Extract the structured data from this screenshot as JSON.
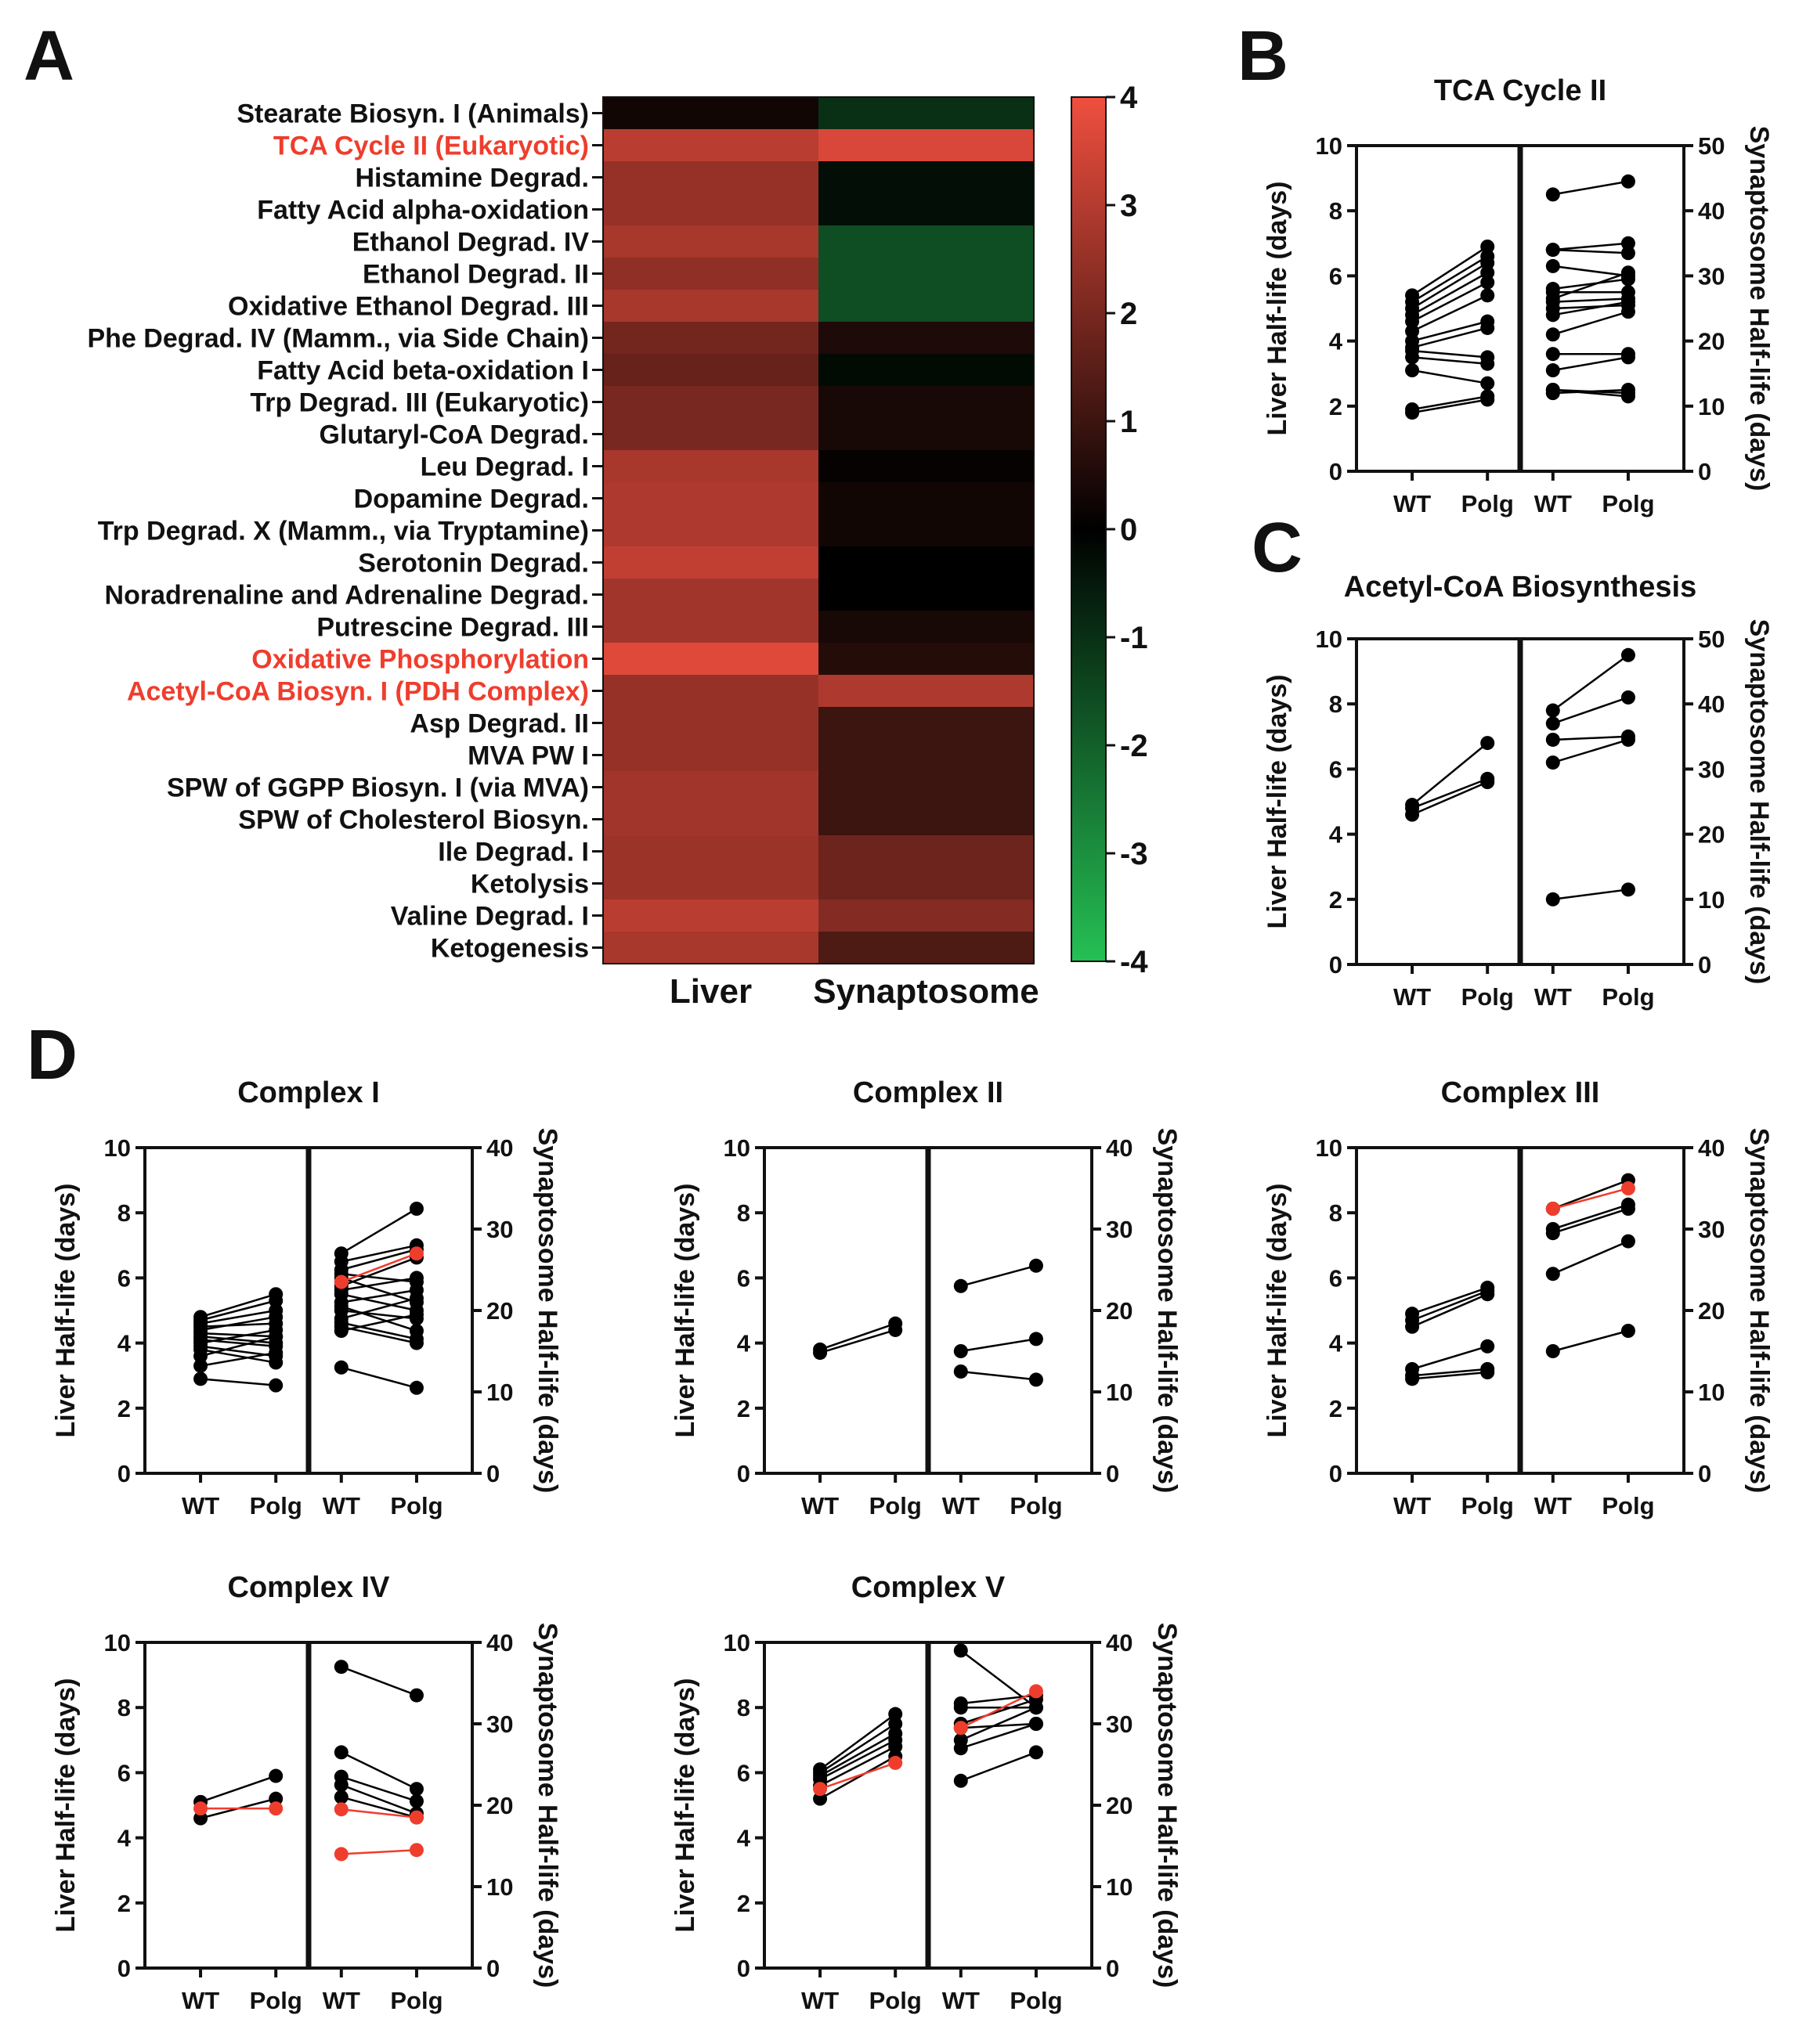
{
  "panel_letters": {
    "a": "A",
    "b": "B",
    "c": "C",
    "d": "D"
  },
  "heatmap": {
    "columns": [
      "Liver",
      "Synaptosome"
    ],
    "colorbar_ticks": [
      "4",
      "3",
      "2",
      "1",
      "0",
      "-1",
      "-2",
      "-3",
      "-4"
    ],
    "colors": {
      "high": "#f04f3f",
      "mid": "#000000",
      "low": "#25c054",
      "highlight_label": "#ef3d2d"
    }
  },
  "chart_data": [
    {
      "type": "heatmap",
      "panel": "A",
      "columns": [
        "Liver",
        "Synaptosome"
      ],
      "vmin": -4,
      "vmax": 4,
      "rows": [
        {
          "label": "Stearate Biosyn. I (Animals)",
          "liver": 0.3,
          "synaptosome": -1.0,
          "highlight": false
        },
        {
          "label": "TCA Cycle II (Eukaryotic)",
          "liver": 3.1,
          "synaptosome": 3.6,
          "highlight": true
        },
        {
          "label": "Histamine Degrad.",
          "liver": 2.5,
          "synaptosome": -0.3,
          "highlight": false
        },
        {
          "label": "Fatty Acid alpha-oxidation",
          "liver": 2.5,
          "synaptosome": -0.3,
          "highlight": false
        },
        {
          "label": "Ethanol Degrad. IV",
          "liver": 2.8,
          "synaptosome": -1.6,
          "highlight": false
        },
        {
          "label": "Ethanol Degrad. II",
          "liver": 2.4,
          "synaptosome": -1.6,
          "highlight": false
        },
        {
          "label": "Oxidative Ethanol Degrad. III",
          "liver": 2.8,
          "synaptosome": -1.6,
          "highlight": false
        },
        {
          "label": "Phe Degrad. IV (Mamm., via Side Chain)",
          "liver": 1.9,
          "synaptosome": 0.5,
          "highlight": false
        },
        {
          "label": "Fatty Acid beta-oxidation I",
          "liver": 1.7,
          "synaptosome": -0.2,
          "highlight": false
        },
        {
          "label": "Trp Degrad. III (Eukaryotic)",
          "liver": 2.0,
          "synaptosome": 0.4,
          "highlight": false
        },
        {
          "label": "Glutaryl-CoA Degrad.",
          "liver": 2.0,
          "synaptosome": 0.4,
          "highlight": false
        },
        {
          "label": "Leu Degrad. I",
          "liver": 2.8,
          "synaptosome": 0.1,
          "highlight": false
        },
        {
          "label": "Dopamine Degrad.",
          "liver": 2.9,
          "synaptosome": 0.3,
          "highlight": false
        },
        {
          "label": "Trp Degrad. X (Mamm., via Tryptamine)",
          "liver": 2.9,
          "synaptosome": 0.3,
          "highlight": false
        },
        {
          "label": "Serotonin Degrad.",
          "liver": 3.2,
          "synaptosome": 0.0,
          "highlight": false
        },
        {
          "label": "Noradrenaline and Adrenaline Degrad.",
          "liver": 2.7,
          "synaptosome": 0.0,
          "highlight": false
        },
        {
          "label": "Putrescine Degrad. III",
          "liver": 2.7,
          "synaptosome": 0.4,
          "highlight": false
        },
        {
          "label": "Oxidative Phosphorylation",
          "liver": 3.7,
          "synaptosome": 0.6,
          "highlight": true
        },
        {
          "label": "Acetyl-CoA Biosyn. I (PDH Complex)",
          "liver": 2.5,
          "synaptosome": 2.9,
          "highlight": true
        },
        {
          "label": "Asp Degrad. II",
          "liver": 2.5,
          "synaptosome": 1.0,
          "highlight": false
        },
        {
          "label": "MVA PW I",
          "liver": 2.5,
          "synaptosome": 1.0,
          "highlight": false
        },
        {
          "label": "SPW of GGPP Biosyn. I (via MVA)",
          "liver": 2.7,
          "synaptosome": 1.0,
          "highlight": false
        },
        {
          "label": "SPW of Cholesterol Biosyn.",
          "liver": 2.7,
          "synaptosome": 1.0,
          "highlight": false
        },
        {
          "label": "Ile Degrad. I",
          "liver": 2.6,
          "synaptosome": 1.8,
          "highlight": false
        },
        {
          "label": "Ketolysis",
          "liver": 2.6,
          "synaptosome": 1.8,
          "highlight": false
        },
        {
          "label": "Valine Degrad. I",
          "liver": 3.1,
          "synaptosome": 2.2,
          "highlight": false
        },
        {
          "label": "Ketogenesis",
          "liver": 2.8,
          "synaptosome": 1.3,
          "highlight": false
        }
      ]
    },
    {
      "type": "line",
      "panel": "B",
      "title": "TCA Cycle II",
      "ylabel_left": "Liver Half-life (days)",
      "ylabel_right": "Synaptosome Half-life (days)",
      "ylim_left": [
        0,
        10
      ],
      "ylim_right": [
        0,
        50
      ],
      "yticks_left": [
        "0",
        "2",
        "4",
        "6",
        "8",
        "10"
      ],
      "yticks_right": [
        "0",
        "10",
        "20",
        "30",
        "40",
        "50"
      ],
      "categories": [
        "WT",
        "Polg",
        "WT",
        "Polg"
      ],
      "liver_pairs": [
        [
          5.4,
          6.9
        ],
        [
          5.2,
          6.6
        ],
        [
          5.0,
          6.4
        ],
        [
          4.8,
          6.1
        ],
        [
          4.6,
          5.8
        ],
        [
          4.3,
          5.4
        ],
        [
          4.0,
          4.6
        ],
        [
          3.8,
          4.4
        ],
        [
          3.7,
          3.5
        ],
        [
          3.5,
          3.3
        ],
        [
          3.1,
          2.7
        ],
        [
          1.9,
          2.3
        ],
        [
          1.8,
          2.2
        ]
      ],
      "synaptosome_pairs": [
        [
          42.5,
          44.5
        ],
        [
          34.0,
          35.0
        ],
        [
          34.0,
          33.5
        ],
        [
          31.5,
          30.0
        ],
        [
          28.0,
          29.5
        ],
        [
          27.5,
          27.5
        ],
        [
          26.5,
          30.5
        ],
        [
          26.0,
          26.5
        ],
        [
          25.0,
          25.5
        ],
        [
          24.0,
          26.0
        ],
        [
          21.0,
          24.5
        ],
        [
          18.0,
          18.0
        ],
        [
          15.5,
          17.5
        ],
        [
          12.5,
          12.0
        ],
        [
          12.0,
          12.5
        ],
        [
          12.5,
          11.5
        ]
      ],
      "red_liver_pairs": [],
      "red_synaptosome_pairs": []
    },
    {
      "type": "line",
      "panel": "C",
      "title": "Acetyl-CoA Biosynthesis",
      "ylabel_left": "Liver Half-life (days)",
      "ylabel_right": "Synaptosome Half-life (days)",
      "ylim_left": [
        0,
        10
      ],
      "ylim_right": [
        0,
        50
      ],
      "yticks_left": [
        "0",
        "2",
        "4",
        "6",
        "8",
        "10"
      ],
      "yticks_right": [
        "0",
        "10",
        "20",
        "30",
        "40",
        "50"
      ],
      "categories": [
        "WT",
        "Polg",
        "WT",
        "Polg"
      ],
      "liver_pairs": [
        [
          4.9,
          6.8
        ],
        [
          4.8,
          5.7
        ],
        [
          4.6,
          5.6
        ]
      ],
      "synaptosome_pairs": [
        [
          39.0,
          47.5
        ],
        [
          37.0,
          41.0
        ],
        [
          34.5,
          35.0
        ],
        [
          31.0,
          34.5
        ],
        [
          10.0,
          11.5
        ]
      ],
      "red_liver_pairs": [],
      "red_synaptosome_pairs": []
    },
    {
      "type": "line",
      "panel": "D",
      "title": "Complex I",
      "ylabel_left": "Liver Half-life (days)",
      "ylabel_right": "Synaptosome Half-life (days)",
      "ylim_left": [
        0,
        10
      ],
      "ylim_right": [
        0,
        40
      ],
      "yticks_left": [
        "0",
        "2",
        "4",
        "6",
        "8",
        "10"
      ],
      "yticks_right": [
        "0",
        "10",
        "20",
        "30",
        "40"
      ],
      "categories": [
        "WT",
        "Polg",
        "WT",
        "Polg"
      ],
      "liver_pairs": [
        [
          4.8,
          5.5
        ],
        [
          4.7,
          5.3
        ],
        [
          4.6,
          5.0
        ],
        [
          4.5,
          4.6
        ],
        [
          4.4,
          4.8
        ],
        [
          4.3,
          4.2
        ],
        [
          4.2,
          4.0
        ],
        [
          4.1,
          3.9
        ],
        [
          4.0,
          4.4
        ],
        [
          3.9,
          3.6
        ],
        [
          3.8,
          3.4
        ],
        [
          3.6,
          4.2
        ],
        [
          3.3,
          3.7
        ],
        [
          2.9,
          2.7
        ]
      ],
      "synaptosome_pairs": [
        [
          27.0,
          32.5
        ],
        [
          26.0,
          28.0
        ],
        [
          25.0,
          27.5
        ],
        [
          24.5,
          23.5
        ],
        [
          24.0,
          21.0
        ],
        [
          23.0,
          26.5
        ],
        [
          22.5,
          24.0
        ],
        [
          22.0,
          20.0
        ],
        [
          21.0,
          22.5
        ],
        [
          20.5,
          17.5
        ],
        [
          20.0,
          19.0
        ],
        [
          19.0,
          21.5
        ],
        [
          18.5,
          16.5
        ],
        [
          18.0,
          16.0
        ],
        [
          17.5,
          19.5
        ],
        [
          13.0,
          10.5
        ]
      ],
      "red_liver_pairs": [],
      "red_synaptosome_pairs": [
        [
          23.5,
          27.0
        ]
      ]
    },
    {
      "type": "line",
      "panel": "D",
      "title": "Complex II",
      "ylabel_left": "Liver Half-life (days)",
      "ylabel_right": "Synaptosome Half-life (days)",
      "ylim_left": [
        0,
        10
      ],
      "ylim_right": [
        0,
        40
      ],
      "yticks_left": [
        "0",
        "2",
        "4",
        "6",
        "8",
        "10"
      ],
      "yticks_right": [
        "0",
        "10",
        "20",
        "30",
        "40"
      ],
      "categories": [
        "WT",
        "Polg",
        "WT",
        "Polg"
      ],
      "liver_pairs": [
        [
          3.8,
          4.6
        ],
        [
          3.7,
          4.4
        ]
      ],
      "synaptosome_pairs": [
        [
          23.0,
          25.5
        ],
        [
          15.0,
          16.5
        ],
        [
          12.5,
          11.5
        ]
      ],
      "red_liver_pairs": [],
      "red_synaptosome_pairs": []
    },
    {
      "type": "line",
      "panel": "D",
      "title": "Complex III",
      "ylabel_left": "Liver Half-life (days)",
      "ylabel_right": "Synaptosome Half-life (days)",
      "ylim_left": [
        0,
        10
      ],
      "ylim_right": [
        0,
        40
      ],
      "yticks_left": [
        "0",
        "2",
        "4",
        "6",
        "8",
        "10"
      ],
      "yticks_right": [
        "0",
        "10",
        "20",
        "30",
        "40"
      ],
      "categories": [
        "WT",
        "Polg",
        "WT",
        "Polg"
      ],
      "liver_pairs": [
        [
          4.9,
          5.7
        ],
        [
          4.7,
          5.6
        ],
        [
          4.5,
          5.5
        ],
        [
          3.2,
          3.9
        ],
        [
          3.0,
          3.2
        ],
        [
          2.9,
          3.1
        ]
      ],
      "synaptosome_pairs": [
        [
          32.5,
          36.0
        ],
        [
          30.0,
          33.0
        ],
        [
          29.5,
          32.5
        ],
        [
          24.5,
          28.5
        ],
        [
          15.0,
          17.5
        ]
      ],
      "red_liver_pairs": [],
      "red_synaptosome_pairs": [
        [
          32.5,
          35.0
        ]
      ]
    },
    {
      "type": "line",
      "panel": "D",
      "title": "Complex IV",
      "ylabel_left": "Liver Half-life (days)",
      "ylabel_right": "Synaptosome Half-life (days)",
      "ylim_left": [
        0,
        10
      ],
      "ylim_right": [
        0,
        40
      ],
      "yticks_left": [
        "0",
        "2",
        "4",
        "6",
        "8",
        "10"
      ],
      "yticks_right": [
        "0",
        "10",
        "20",
        "30",
        "40"
      ],
      "categories": [
        "WT",
        "Polg",
        "WT",
        "Polg"
      ],
      "liver_pairs": [
        [
          5.1,
          5.9
        ],
        [
          4.6,
          5.2
        ]
      ],
      "synaptosome_pairs": [
        [
          37.0,
          33.5
        ],
        [
          26.5,
          22.0
        ],
        [
          23.5,
          20.5
        ],
        [
          22.5,
          19.0
        ],
        [
          21.0,
          18.5
        ]
      ],
      "red_liver_pairs": [
        [
          4.9,
          4.9
        ]
      ],
      "red_synaptosome_pairs": [
        [
          19.5,
          18.5
        ],
        [
          14.0,
          14.5
        ]
      ]
    },
    {
      "type": "line",
      "panel": "D",
      "title": "Complex V",
      "ylabel_left": "Liver Half-life (days)",
      "ylabel_right": "Synaptosome Half-life (days)",
      "ylim_left": [
        0,
        10
      ],
      "ylim_right": [
        0,
        40
      ],
      "yticks_left": [
        "0",
        "2",
        "4",
        "6",
        "8",
        "10"
      ],
      "yticks_right": [
        "0",
        "10",
        "20",
        "30",
        "40"
      ],
      "categories": [
        "WT",
        "Polg",
        "WT",
        "Polg"
      ],
      "liver_pairs": [
        [
          6.1,
          7.8
        ],
        [
          6.0,
          7.5
        ],
        [
          5.9,
          7.2
        ],
        [
          5.8,
          7.0
        ],
        [
          5.6,
          6.8
        ],
        [
          5.2,
          6.5
        ]
      ],
      "synaptosome_pairs": [
        [
          39.0,
          32.0
        ],
        [
          32.5,
          33.5
        ],
        [
          32.0,
          32.0
        ],
        [
          30.0,
          33.0
        ],
        [
          29.5,
          30.0
        ],
        [
          28.0,
          32.0
        ],
        [
          27.0,
          30.0
        ],
        [
          23.0,
          26.5
        ]
      ],
      "red_liver_pairs": [
        [
          5.5,
          6.3
        ]
      ],
      "red_synaptosome_pairs": [
        [
          29.5,
          34.0
        ]
      ]
    }
  ]
}
